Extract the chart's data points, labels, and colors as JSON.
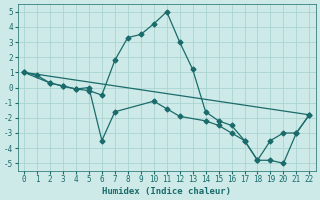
{
  "xlabel": "Humidex (Indice chaleur)",
  "bg_color": "#ceeae8",
  "grid_color": "#aad4d0",
  "line_color": "#1a6b6b",
  "xlim": [
    -0.5,
    22.5
  ],
  "ylim": [
    -5.5,
    5.5
  ],
  "yticks": [
    -5,
    -4,
    -3,
    -2,
    -1,
    0,
    1,
    2,
    3,
    4,
    5
  ],
  "xticks": [
    0,
    1,
    2,
    3,
    4,
    5,
    6,
    7,
    8,
    9,
    10,
    11,
    12,
    13,
    14,
    15,
    16,
    17,
    18,
    19,
    20,
    21,
    22
  ],
  "series1_x": [
    0,
    1,
    2,
    3,
    4,
    5,
    6,
    7,
    8,
    9,
    10,
    11,
    12,
    13,
    14,
    15,
    16,
    17,
    18,
    19,
    20,
    21,
    22
  ],
  "series1_y": [
    1.0,
    0.8,
    0.3,
    0.1,
    -0.1,
    -0.2,
    -0.5,
    1.8,
    3.3,
    3.5,
    4.2,
    5.0,
    3.0,
    1.2,
    -1.6,
    -2.2,
    -2.5,
    -3.5,
    -4.8,
    -3.5,
    -3.0,
    -3.0,
    -1.8
  ],
  "series2_x": [
    0,
    2,
    3,
    4,
    5,
    6,
    7,
    10,
    11,
    12,
    14,
    15,
    16,
    17,
    18,
    19,
    20,
    21,
    22
  ],
  "series2_y": [
    1.0,
    0.3,
    0.1,
    -0.1,
    0.0,
    -3.5,
    -1.6,
    -0.9,
    -1.4,
    -1.9,
    -2.2,
    -2.5,
    -3.0,
    -3.5,
    -4.8,
    -4.8,
    -5.0,
    -3.0,
    -1.8
  ],
  "series3_x": [
    0,
    22
  ],
  "series3_y": [
    1.0,
    -1.8
  ],
  "markersize": 2.5,
  "linewidth": 0.9
}
